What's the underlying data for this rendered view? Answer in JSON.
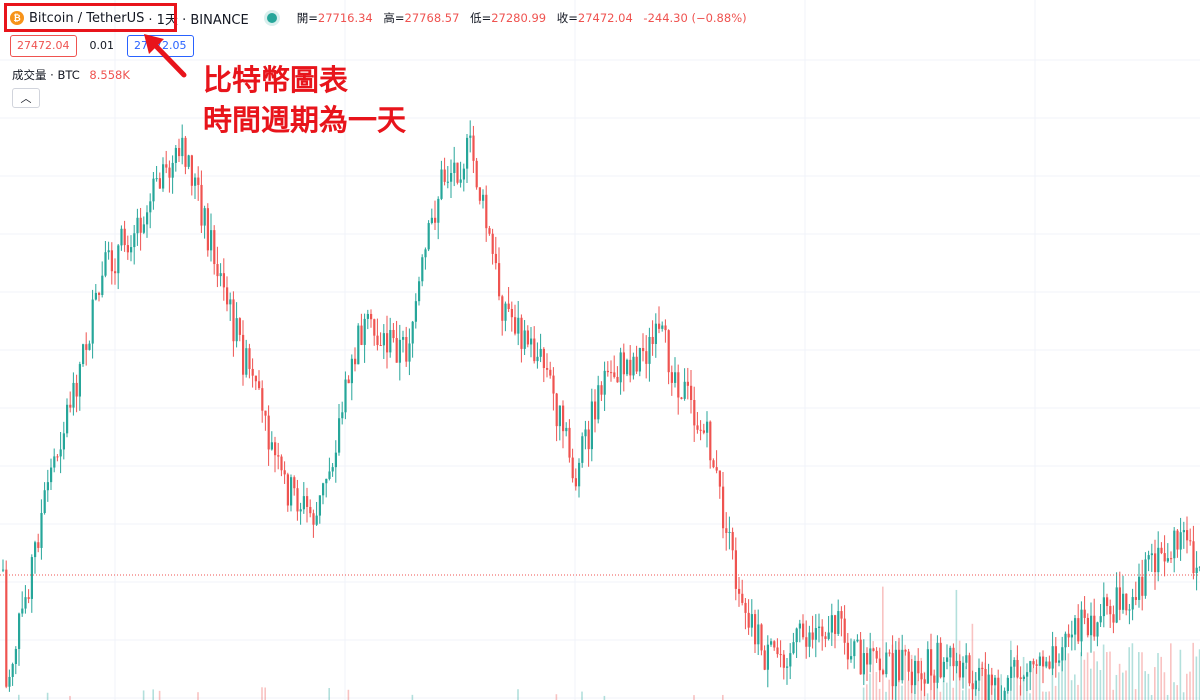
{
  "header": {
    "symbol": "Bitcoin / TetherUS",
    "interval": "· 1天 · BINANCE",
    "coin_icon": "bitcoin-icon",
    "ohlc": {
      "open_label": "開=",
      "open": "27716.34",
      "high_label": "高=",
      "high": "27768.57",
      "low_label": "低=",
      "low": "27280.99",
      "close_label": "收=",
      "close": "27472.04",
      "change": "-244.30 (−0.88%)"
    }
  },
  "prices": {
    "bid": "27472.04",
    "spread": "0.01",
    "ask": "27472.05"
  },
  "volume": {
    "label": "成交量 · BTC",
    "value": "8.558K"
  },
  "annotation": {
    "line1": "比特幣圖表",
    "line2": "時間週期為一天"
  },
  "colors": {
    "up": "#26a69a",
    "down": "#ef5350",
    "annotation": "#e8141b",
    "grid": "#f0f3fa"
  }
}
